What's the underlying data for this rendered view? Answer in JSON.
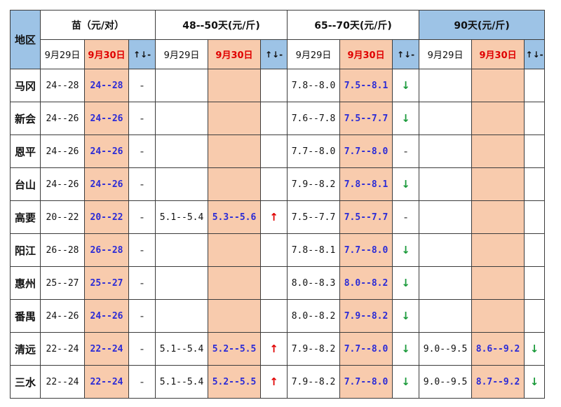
{
  "header": {
    "region_label": "地区",
    "groups": [
      "苗（元/对）",
      "48--50天(元/斤)",
      "65--70天(元/斤)",
      "90天(元/斤)"
    ],
    "prev_date": "9月29日",
    "curr_date": "9月30日",
    "trend_label": "↑↓-"
  },
  "rows": [
    {
      "region": "马冈",
      "cells": [
        "24--28",
        "24--28",
        "-",
        "",
        "",
        "",
        "7.8--8.0",
        "7.5--8.1",
        "↓",
        "",
        "",
        ""
      ]
    },
    {
      "region": "新会",
      "cells": [
        "24--26",
        "24--26",
        "-",
        "",
        "",
        "",
        "7.6--7.8",
        "7.5--7.7",
        "↓",
        "",
        "",
        ""
      ]
    },
    {
      "region": "恩平",
      "cells": [
        "24--26",
        "24--26",
        "-",
        "",
        "",
        "",
        "7.7--8.0",
        "7.7--8.0",
        "-",
        "",
        "",
        ""
      ]
    },
    {
      "region": "台山",
      "cells": [
        "24--26",
        "24--26",
        "-",
        "",
        "",
        "",
        "7.9--8.2",
        "7.8--8.1",
        "↓",
        "",
        "",
        ""
      ]
    },
    {
      "region": "高要",
      "cells": [
        "20--22",
        "20--22",
        "-",
        "5.1--5.4",
        "5.3--5.6",
        "↑",
        "7.5--7.7",
        "7.5--7.7",
        "-",
        "",
        "",
        ""
      ]
    },
    {
      "region": "阳江",
      "cells": [
        "26--28",
        "26--28",
        "-",
        "",
        "",
        "",
        "7.8--8.1",
        "7.7--8.0",
        "↓",
        "",
        "",
        ""
      ]
    },
    {
      "region": "惠州",
      "cells": [
        "25--27",
        "25--27",
        "-",
        "",
        "",
        "",
        "8.0--8.3",
        "8.0--8.2",
        "↓",
        "",
        "",
        ""
      ]
    },
    {
      "region": "番禺",
      "cells": [
        "24--26",
        "24--26",
        "-",
        "",
        "",
        "",
        "8.0--8.2",
        "7.9--8.2",
        "↓",
        "",
        "",
        ""
      ]
    },
    {
      "region": "清远",
      "cells": [
        "22--24",
        "22--24",
        "-",
        "5.1--5.4",
        "5.2--5.5",
        "↑",
        "7.9--8.2",
        "7.7--8.0",
        "↓",
        "9.0--9.5",
        "8.6--9.2",
        "↓"
      ]
    },
    {
      "region": "三水",
      "cells": [
        "22--24",
        "22--24",
        "-",
        "5.1--5.4",
        "5.2--5.5",
        "↑",
        "7.9--8.2",
        "7.7--8.0",
        "↓",
        "9.0--9.5",
        "8.7--9.2",
        "↓"
      ]
    }
  ],
  "colors": {
    "header_blue": "#9dc3e6",
    "peach": "#f8cbad",
    "up": "#e00000",
    "down": "#1a9a3a",
    "current_value": "#2b2bd6"
  }
}
